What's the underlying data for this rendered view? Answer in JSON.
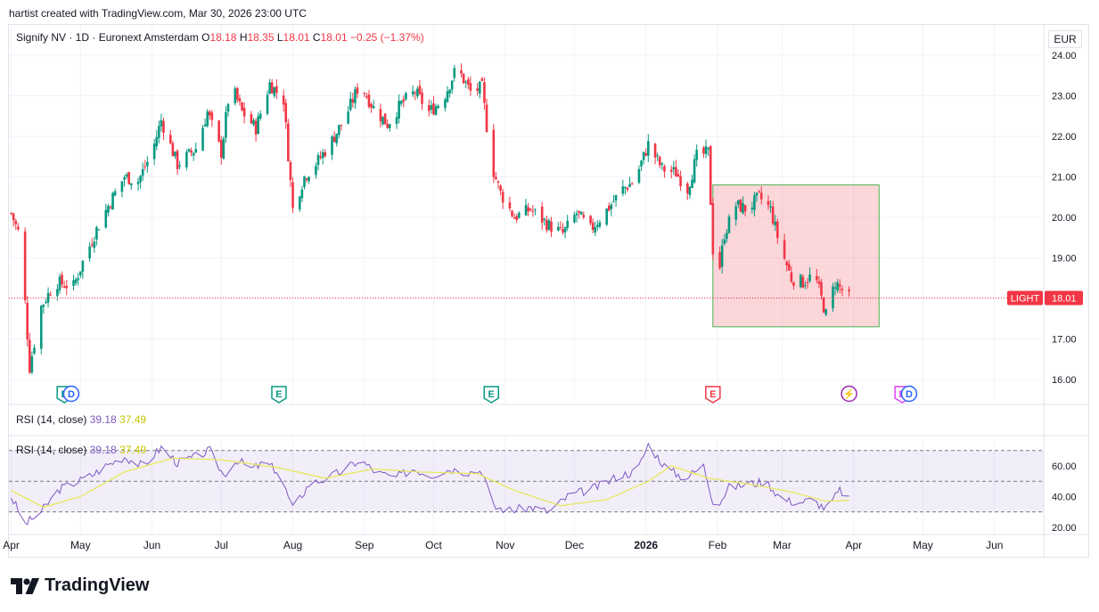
{
  "attribution": "hartist created with TradingView.com, Mar 30, 2026 23:00 UTC",
  "legend": {
    "symbol": "Signify NV · 1D · Euronext Amsterdam",
    "o_label": "O",
    "o": "18.18",
    "h_label": "H",
    "h": "18.35",
    "l_label": "L",
    "l": "18.01",
    "c_label": "C",
    "c": "18.01",
    "change": "−0.25 (−1.37%)"
  },
  "currency": "EUR",
  "ticker_tag": "LIGHT",
  "last_price": "18.01",
  "rsi_label_top": {
    "name": "RSI (14, close)",
    "v1": "39.18",
    "v2": "37.49"
  },
  "rsi_label_inner": {
    "name": "RSI (14, close)",
    "v1": "39.18",
    "v2": "37.49"
  },
  "brand": "TradingView",
  "colors": {
    "up": "#089981",
    "down": "#f23645",
    "rsi": "#7e57c2",
    "rsi_ma": "#e8e85a",
    "box": "#4caf50"
  },
  "chart_data": {
    "type": "candlestick",
    "price_axis": {
      "ticks": [
        "24.00",
        "23.00",
        "22.00",
        "21.00",
        "20.00",
        "19.00",
        "18.00",
        "17.00",
        "16.00"
      ],
      "range": [
        15.6,
        24.2
      ]
    },
    "time_axis": [
      "Apr",
      "May",
      "Jun",
      "Jul",
      "Aug",
      "Sep",
      "Oct",
      "Nov",
      "Dec",
      "2026",
      "Feb",
      "Mar",
      "Apr",
      "May",
      "Jun"
    ],
    "price_path": [
      [
        "2025-04-01",
        20.1
      ],
      [
        "2025-04-05",
        19.5
      ],
      [
        "2025-04-09",
        16.3
      ],
      [
        "2025-04-14",
        17.8
      ],
      [
        "2025-04-20",
        18.4
      ],
      [
        "2025-04-28",
        18.3
      ],
      [
        "2025-05-02",
        18.9
      ],
      [
        "2025-05-08",
        19.7
      ],
      [
        "2025-05-14",
        20.4
      ],
      [
        "2025-05-20",
        21.0
      ],
      [
        "2025-05-26",
        20.9
      ],
      [
        "2025-06-01",
        21.6
      ],
      [
        "2025-06-05",
        22.4
      ],
      [
        "2025-06-12",
        21.3
      ],
      [
        "2025-06-20",
        21.7
      ],
      [
        "2025-06-25",
        22.6
      ],
      [
        "2025-07-01",
        21.6
      ],
      [
        "2025-07-05",
        23.3
      ],
      [
        "2025-07-10",
        22.6
      ],
      [
        "2025-07-16",
        22.2
      ],
      [
        "2025-07-22",
        23.3
      ],
      [
        "2025-07-28",
        22.9
      ],
      [
        "2025-08-01",
        20.2
      ],
      [
        "2025-08-06",
        21.0
      ],
      [
        "2025-08-12",
        21.4
      ],
      [
        "2025-08-18",
        21.9
      ],
      [
        "2025-08-24",
        22.5
      ],
      [
        "2025-08-30",
        23.3
      ],
      [
        "2025-09-05",
        22.7
      ],
      [
        "2025-09-11",
        22.3
      ],
      [
        "2025-09-17",
        22.8
      ],
      [
        "2025-09-23",
        23.1
      ],
      [
        "2025-09-29",
        22.6
      ],
      [
        "2025-10-05",
        22.9
      ],
      [
        "2025-10-11",
        23.7
      ],
      [
        "2025-10-17",
        23.1
      ],
      [
        "2025-10-22",
        23.2
      ],
      [
        "2025-10-26",
        21.3
      ],
      [
        "2025-10-30",
        20.6
      ],
      [
        "2025-11-05",
        20.0
      ],
      [
        "2025-11-12",
        20.2
      ],
      [
        "2025-11-20",
        19.8
      ],
      [
        "2025-11-26",
        19.6
      ],
      [
        "2025-12-02",
        20.1
      ],
      [
        "2025-12-08",
        19.7
      ],
      [
        "2025-12-14",
        20.1
      ],
      [
        "2025-12-22",
        20.7
      ],
      [
        "2025-12-27",
        20.9
      ],
      [
        "2026-01-02",
        21.8
      ],
      [
        "2026-01-08",
        21.2
      ],
      [
        "2026-01-14",
        21.1
      ],
      [
        "2026-01-19",
        20.7
      ],
      [
        "2026-01-23",
        21.5
      ],
      [
        "2026-01-28",
        21.6
      ],
      [
        "2026-01-31",
        18.0
      ],
      [
        "2026-02-04",
        19.6
      ],
      [
        "2026-02-09",
        20.3
      ],
      [
        "2026-02-14",
        20.2
      ],
      [
        "2026-02-19",
        20.5
      ],
      [
        "2026-02-24",
        20.2
      ],
      [
        "2026-02-28",
        19.3
      ],
      [
        "2026-03-05",
        18.5
      ],
      [
        "2026-03-10",
        18.4
      ],
      [
        "2026-03-15",
        18.6
      ],
      [
        "2026-03-20",
        17.6
      ],
      [
        "2026-03-24",
        18.4
      ],
      [
        "2026-03-30",
        18.01
      ]
    ],
    "range_box": {
      "start": "2026-01-30",
      "end": "2026-04-12",
      "high": 20.8,
      "low": 17.3
    },
    "last_close": 18.01,
    "events": [
      {
        "date": "2025-04-24",
        "label": "E"
      },
      {
        "date": "2025-04-27",
        "label": "D"
      },
      {
        "date": "2025-07-26",
        "label": "E"
      },
      {
        "date": "2025-10-26",
        "label": "E"
      },
      {
        "date": "2026-01-30",
        "label": "E"
      },
      {
        "date": "2026-03-30",
        "label": "⚡"
      },
      {
        "date": "2026-04-22",
        "label": "E"
      },
      {
        "date": "2026-04-25",
        "label": "D"
      }
    ],
    "rsi": {
      "name": "RSI (14, close)",
      "ticks": [
        "60.00",
        "40.00",
        "20.00"
      ],
      "range": [
        15,
        78
      ],
      "band": [
        30,
        70
      ],
      "mid": 50,
      "path": [
        [
          "2025-04-01",
          40
        ],
        [
          "2025-04-07",
          22
        ],
        [
          "2025-04-14",
          30
        ],
        [
          "2025-04-22",
          45
        ],
        [
          "2025-04-30",
          50
        ],
        [
          "2025-05-06",
          54
        ],
        [
          "2025-05-12",
          60
        ],
        [
          "2025-05-20",
          66
        ],
        [
          "2025-05-28",
          60
        ],
        [
          "2025-06-05",
          72
        ],
        [
          "2025-06-12",
          62
        ],
        [
          "2025-06-20",
          66
        ],
        [
          "2025-06-26",
          70
        ],
        [
          "2025-07-02",
          54
        ],
        [
          "2025-07-08",
          64
        ],
        [
          "2025-07-14",
          58
        ],
        [
          "2025-07-20",
          62
        ],
        [
          "2025-07-26",
          56
        ],
        [
          "2025-08-01",
          32
        ],
        [
          "2025-08-08",
          48
        ],
        [
          "2025-08-16",
          52
        ],
        [
          "2025-08-24",
          58
        ],
        [
          "2025-08-30",
          64
        ],
        [
          "2025-09-06",
          56
        ],
        [
          "2025-09-14",
          52
        ],
        [
          "2025-09-22",
          58
        ],
        [
          "2025-09-30",
          54
        ],
        [
          "2025-10-08",
          58
        ],
        [
          "2025-10-16",
          56
        ],
        [
          "2025-10-22",
          57
        ],
        [
          "2025-10-27",
          33
        ],
        [
          "2025-11-04",
          31
        ],
        [
          "2025-11-12",
          33
        ],
        [
          "2025-11-20",
          30
        ],
        [
          "2025-11-28",
          40
        ],
        [
          "2025-12-06",
          44
        ],
        [
          "2025-12-14",
          48
        ],
        [
          "2025-12-20",
          54
        ],
        [
          "2025-12-28",
          56
        ],
        [
          "2026-01-02",
          74
        ],
        [
          "2026-01-10",
          58
        ],
        [
          "2026-01-18",
          52
        ],
        [
          "2026-01-26",
          60
        ],
        [
          "2026-01-31",
          32
        ],
        [
          "2026-02-06",
          46
        ],
        [
          "2026-02-14",
          48
        ],
        [
          "2026-02-22",
          50
        ],
        [
          "2026-03-01",
          38
        ],
        [
          "2026-03-08",
          36
        ],
        [
          "2026-03-14",
          38
        ],
        [
          "2026-03-20",
          32
        ],
        [
          "2026-03-26",
          44
        ],
        [
          "2026-03-30",
          39.18
        ]
      ],
      "ma_path": [
        [
          "2025-04-01",
          44
        ],
        [
          "2025-04-15",
          33
        ],
        [
          "2025-05-01",
          40
        ],
        [
          "2025-05-20",
          56
        ],
        [
          "2025-06-10",
          65
        ],
        [
          "2025-07-01",
          64
        ],
        [
          "2025-07-25",
          59
        ],
        [
          "2025-08-15",
          52
        ],
        [
          "2025-09-05",
          58
        ],
        [
          "2025-09-25",
          56
        ],
        [
          "2025-10-20",
          55
        ],
        [
          "2025-11-05",
          44
        ],
        [
          "2025-11-25",
          34
        ],
        [
          "2025-12-15",
          38
        ],
        [
          "2026-01-02",
          50
        ],
        [
          "2026-01-12",
          60
        ],
        [
          "2026-01-28",
          52
        ],
        [
          "2026-02-15",
          48
        ],
        [
          "2026-03-05",
          43
        ],
        [
          "2026-03-20",
          37
        ],
        [
          "2026-03-30",
          37.49
        ]
      ]
    }
  }
}
